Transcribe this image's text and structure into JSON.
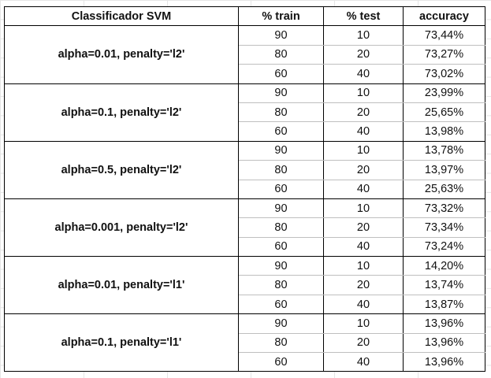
{
  "table": {
    "headers": [
      "Classificador SVM",
      "% train",
      "% test",
      "accuracy"
    ],
    "groups": [
      {
        "label": "alpha=0.01, penalty='l2'",
        "rows": [
          {
            "train": "90",
            "test": "10",
            "accuracy": "73,44%"
          },
          {
            "train": "80",
            "test": "20",
            "accuracy": "73,27%"
          },
          {
            "train": "60",
            "test": "40",
            "accuracy": "73,02%"
          }
        ]
      },
      {
        "label": "alpha=0.1, penalty='l2'",
        "rows": [
          {
            "train": "90",
            "test": "10",
            "accuracy": "23,99%"
          },
          {
            "train": "80",
            "test": "20",
            "accuracy": "25,65%"
          },
          {
            "train": "60",
            "test": "40",
            "accuracy": "13,98%"
          }
        ]
      },
      {
        "label": "alpha=0.5, penalty='l2'",
        "rows": [
          {
            "train": "90",
            "test": "10",
            "accuracy": "13,78%"
          },
          {
            "train": "80",
            "test": "20",
            "accuracy": "13,97%"
          },
          {
            "train": "60",
            "test": "40",
            "accuracy": "25,63%"
          }
        ]
      },
      {
        "label": "alpha=0.001, penalty='l2'",
        "rows": [
          {
            "train": "90",
            "test": "10",
            "accuracy": "73,32%"
          },
          {
            "train": "80",
            "test": "20",
            "accuracy": "73,34%"
          },
          {
            "train": "60",
            "test": "40",
            "accuracy": "73,24%"
          }
        ]
      },
      {
        "label": "alpha=0.01, penalty='l1'",
        "rows": [
          {
            "train": "90",
            "test": "10",
            "accuracy": "14,20%"
          },
          {
            "train": "80",
            "test": "20",
            "accuracy": "13,74%"
          },
          {
            "train": "60",
            "test": "40",
            "accuracy": "13,87%"
          }
        ]
      },
      {
        "label": "alpha=0.1, penalty='l1'",
        "rows": [
          {
            "train": "90",
            "test": "10",
            "accuracy": "13,96%"
          },
          {
            "train": "80",
            "test": "20",
            "accuracy": "13,96%"
          },
          {
            "train": "60",
            "test": "40",
            "accuracy": "13,96%"
          }
        ]
      }
    ]
  }
}
